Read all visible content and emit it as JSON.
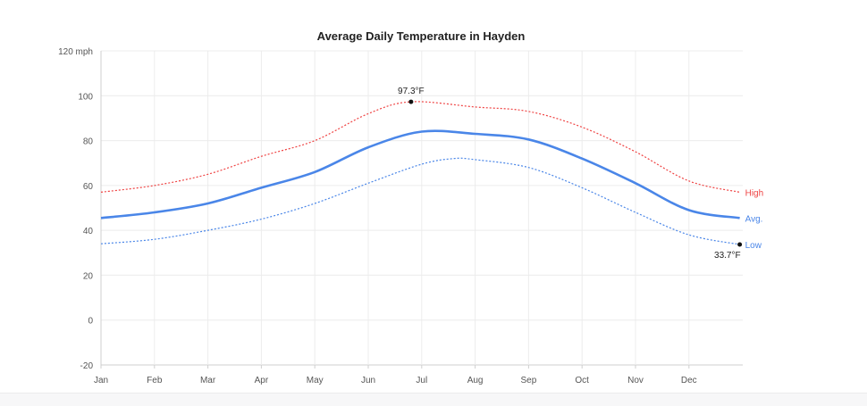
{
  "chart_data": {
    "type": "line",
    "title": "Average Daily Temperature in Hayden",
    "x_tick_labels": [
      "Jan",
      "Feb",
      "Mar",
      "Apr",
      "May",
      "Jun",
      "Jul",
      "Aug",
      "Sep",
      "Oct",
      "Nov",
      "Dec"
    ],
    "y_tick_labels": [
      "120 mph",
      "100",
      "80",
      "60",
      "40",
      "20",
      "0",
      "-20"
    ],
    "y_ticks": [
      120,
      100,
      80,
      60,
      40,
      20,
      0,
      -20
    ],
    "ylim": [
      -20,
      120
    ],
    "x_range_months": [
      1,
      12.95
    ],
    "grid": true,
    "series": [
      {
        "name": "High",
        "color": "#ef4444",
        "style": "dotted",
        "x": [
          1,
          2,
          3,
          4,
          5,
          6,
          6.8,
          8,
          9,
          10,
          11,
          12,
          12.95
        ],
        "y": [
          57,
          60,
          65,
          73,
          80,
          92,
          97.3,
          95,
          93,
          86,
          75,
          62,
          57
        ]
      },
      {
        "name": "Avg.",
        "color": "#4a86e8",
        "style": "solid",
        "x": [
          1,
          2,
          3,
          4,
          5,
          6,
          7,
          8,
          9,
          10,
          11,
          12,
          12.95
        ],
        "y": [
          45.5,
          48,
          52,
          59,
          66,
          77,
          84,
          83,
          80.5,
          72,
          61,
          49,
          45.5
        ]
      },
      {
        "name": "Low",
        "color": "#4a86e8",
        "style": "dotted",
        "x": [
          1,
          2,
          3,
          4,
          5,
          6,
          7,
          7.6,
          8,
          9,
          10,
          11,
          12,
          12.95
        ],
        "y": [
          34,
          36,
          40,
          45,
          52,
          61,
          69.5,
          72,
          71.5,
          68,
          59,
          48,
          38,
          33.7
        ]
      }
    ],
    "annotations": [
      {
        "text": "97.3°F",
        "series": "High",
        "x": 6.8,
        "y": 97.3,
        "anchor": "above"
      },
      {
        "text": "33.7°F",
        "series": "Low",
        "x": 12.95,
        "y": 33.7,
        "anchor": "below"
      }
    ]
  }
}
